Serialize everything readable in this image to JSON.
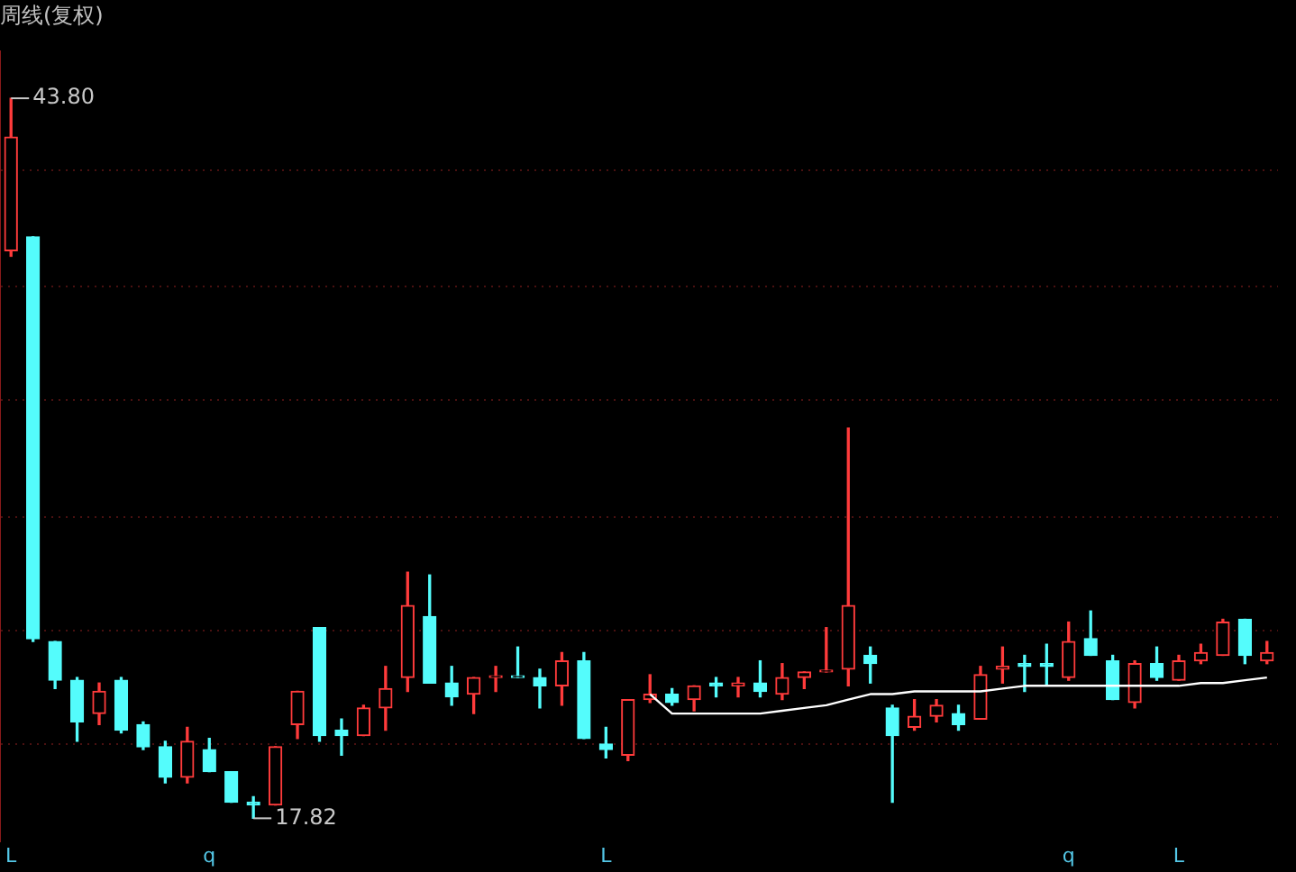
{
  "chart_data": {
    "type": "candlestick",
    "title": "周线(复权)",
    "categories": [
      "L",
      null,
      null,
      null,
      null,
      null,
      null,
      null,
      null,
      "q",
      null,
      null,
      null,
      null,
      null,
      null,
      null,
      null,
      null,
      null,
      null,
      null,
      null,
      null,
      null,
      null,
      null,
      "L",
      null,
      null,
      null,
      null,
      null,
      null,
      null,
      null,
      null,
      null,
      null,
      null,
      null,
      null,
      null,
      null,
      null,
      null,
      null,
      null,
      "q",
      null,
      null,
      null,
      null,
      "L",
      null,
      null,
      null,
      null
    ],
    "ohlc": [
      [
        38.3,
        43.8,
        38.1,
        42.4
      ],
      [
        38.8,
        38.8,
        24.2,
        24.3
      ],
      [
        24.2,
        24.2,
        22.5,
        22.8
      ],
      [
        22.8,
        22.9,
        20.6,
        21.3
      ],
      [
        21.6,
        22.7,
        21.2,
        22.4
      ],
      [
        22.8,
        22.9,
        20.9,
        21.0
      ],
      [
        21.2,
        21.3,
        20.3,
        20.4
      ],
      [
        20.4,
        20.6,
        19.1,
        19.3
      ],
      [
        19.3,
        21.1,
        19.1,
        20.6
      ],
      [
        20.3,
        20.7,
        19.5,
        19.5
      ],
      [
        19.5,
        19.5,
        18.4,
        18.4
      ],
      [
        18.4,
        18.6,
        17.82,
        18.3
      ],
      [
        18.3,
        20.4,
        18.3,
        20.4
      ],
      [
        21.2,
        22.4,
        20.7,
        22.4
      ],
      [
        24.7,
        24.7,
        20.6,
        20.8
      ],
      [
        21.0,
        21.4,
        20.1,
        20.8
      ],
      [
        20.8,
        21.9,
        20.8,
        21.8
      ],
      [
        21.8,
        23.3,
        21.0,
        22.5
      ],
      [
        22.9,
        26.7,
        22.4,
        25.5
      ],
      [
        25.1,
        26.6,
        22.7,
        22.7
      ],
      [
        22.7,
        23.3,
        21.9,
        22.2
      ],
      [
        22.3,
        22.9,
        21.6,
        22.9
      ],
      [
        22.9,
        23.3,
        22.4,
        22.9
      ],
      [
        22.9,
        24.0,
        22.9,
        22.9
      ],
      [
        22.9,
        23.2,
        21.8,
        22.6
      ],
      [
        22.6,
        23.8,
        21.9,
        23.5
      ],
      [
        23.5,
        23.8,
        20.7,
        20.7
      ],
      [
        20.5,
        21.1,
        20.0,
        20.3
      ],
      [
        20.1,
        22.1,
        19.9,
        22.1
      ],
      [
        22.1,
        23.0,
        22.0,
        22.3
      ],
      [
        22.3,
        22.5,
        21.9,
        22.0
      ],
      [
        22.1,
        22.6,
        21.7,
        22.6
      ],
      [
        22.7,
        22.9,
        22.2,
        22.6
      ],
      [
        22.6,
        22.9,
        22.2,
        22.7
      ],
      [
        22.7,
        23.5,
        22.2,
        22.4
      ],
      [
        22.3,
        23.4,
        22.1,
        22.9
      ],
      [
        22.9,
        23.1,
        22.5,
        23.1
      ],
      [
        23.1,
        24.7,
        23.1,
        23.1
      ],
      [
        23.2,
        31.9,
        22.6,
        25.5
      ],
      [
        23.7,
        24.0,
        22.7,
        23.4
      ],
      [
        21.8,
        21.9,
        18.4,
        20.8
      ],
      [
        21.1,
        22.1,
        21.0,
        21.5
      ],
      [
        21.5,
        22.1,
        21.3,
        21.9
      ],
      [
        21.6,
        21.9,
        21.0,
        21.2
      ],
      [
        21.4,
        23.3,
        21.4,
        23.0
      ],
      [
        23.2,
        24.0,
        22.7,
        23.3
      ],
      [
        23.4,
        23.7,
        22.4,
        23.3
      ],
      [
        23.4,
        24.1,
        22.6,
        23.3
      ],
      [
        22.9,
        24.9,
        22.8,
        24.2
      ],
      [
        24.3,
        25.3,
        23.7,
        23.7
      ],
      [
        23.5,
        23.7,
        22.1,
        22.1
      ],
      [
        22.0,
        23.5,
        21.8,
        23.4
      ],
      [
        23.4,
        24.0,
        22.8,
        22.9
      ],
      [
        22.8,
        23.7,
        22.8,
        23.5
      ],
      [
        23.5,
        24.1,
        23.4,
        23.8
      ],
      [
        23.7,
        25.0,
        23.7,
        24.9
      ],
      [
        25.0,
        25.0,
        23.4,
        23.7
      ],
      [
        23.5,
        24.2,
        23.4,
        23.8
      ]
    ],
    "colors": [
      "#ff3b3b",
      "#54fcfc",
      "#54fcfc",
      "#54fcfc",
      "#ff3b3b",
      "#54fcfc",
      "#54fcfc",
      "#54fcfc",
      "#ff3b3b",
      "#54fcfc",
      "#54fcfc",
      "#54fcfc",
      "#ff3b3b",
      "#ff3b3b",
      "#54fcfc",
      "#54fcfc",
      "#ff3b3b",
      "#ff3b3b",
      "#ff3b3b",
      "#54fcfc",
      "#54fcfc",
      "#ff3b3b",
      "#ff3b3b",
      "#54fcfc",
      "#54fcfc",
      "#ff3b3b",
      "#54fcfc",
      "#54fcfc",
      "#ff3b3b",
      "#ff3b3b",
      "#54fcfc",
      "#ff3b3b",
      "#54fcfc",
      "#ff3b3b",
      "#54fcfc",
      "#ff3b3b",
      "#ff3b3b",
      "#ff3b3b",
      "#ff3b3b",
      "#54fcfc",
      "#54fcfc",
      "#ff3b3b",
      "#ff3b3b",
      "#54fcfc",
      "#ff3b3b",
      "#ff3b3b",
      "#54fcfc",
      "#54fcfc",
      "#ff3b3b",
      "#54fcfc",
      "#54fcfc",
      "#ff3b3b",
      "#54fcfc",
      "#ff3b3b",
      "#ff3b3b",
      "#ff3b3b",
      "#54fcfc",
      "#ff3b3b"
    ],
    "series": [
      {
        "type": "line",
        "color": "#ffffff",
        "values": [
          null,
          null,
          null,
          null,
          null,
          null,
          null,
          null,
          null,
          null,
          null,
          null,
          null,
          null,
          null,
          null,
          null,
          null,
          null,
          null,
          null,
          null,
          null,
          null,
          null,
          null,
          null,
          null,
          null,
          22.3,
          21.6,
          21.6,
          21.6,
          21.6,
          21.6,
          21.7,
          21.8,
          21.9,
          22.1,
          22.3,
          22.3,
          22.4,
          22.4,
          22.4,
          22.4,
          22.5,
          22.6,
          22.6,
          22.6,
          22.6,
          22.6,
          22.6,
          22.6,
          22.6,
          22.7,
          22.7,
          22.8,
          22.9
        ]
      }
    ],
    "ylim": [
      17.0,
      45.5
    ],
    "yticks": [
      {
        "value": 20.5,
        "label": null
      },
      {
        "value": 24.6,
        "label": null
      },
      {
        "value": 28.7,
        "label": null
      },
      {
        "value": 32.9,
        "label": null
      },
      {
        "value": 37.0,
        "label": null
      },
      {
        "value": 41.2,
        "label": null
      }
    ],
    "grid": "y",
    "tick_labels": "x",
    "annotations": [
      "43.80",
      "17.82"
    ]
  }
}
